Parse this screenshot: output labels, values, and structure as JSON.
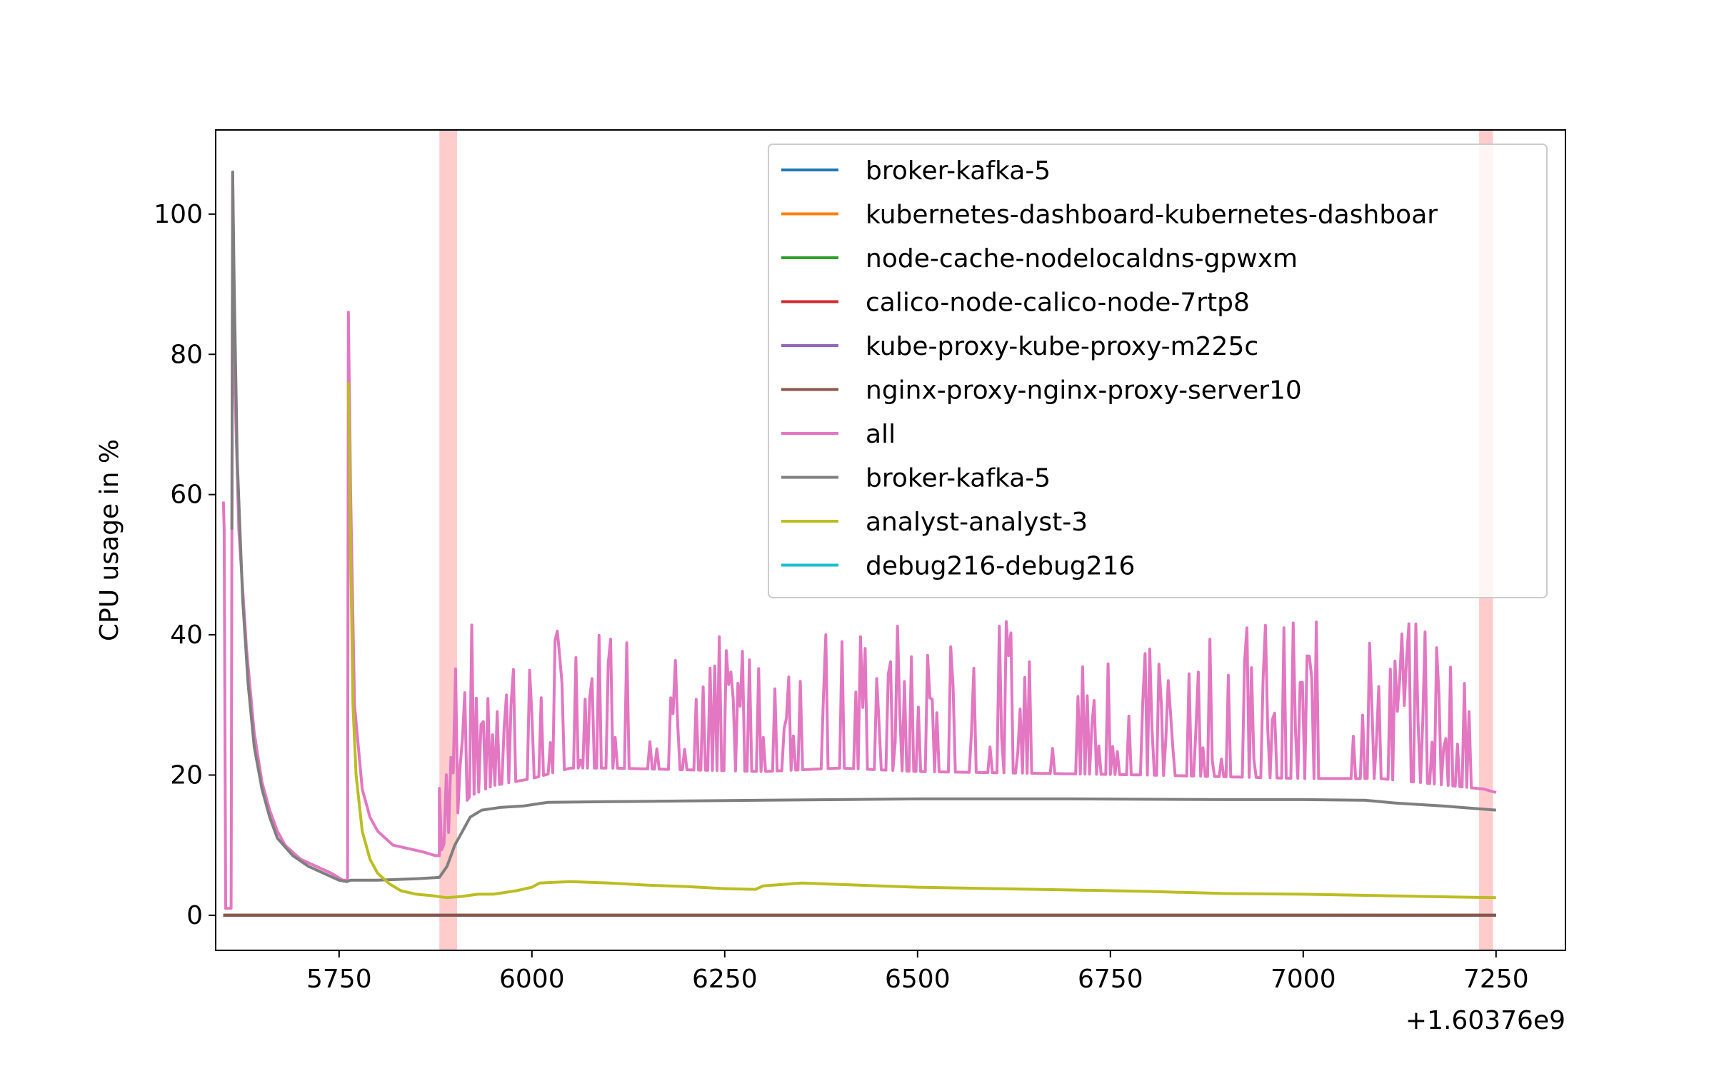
{
  "chart_data": {
    "type": "line",
    "title": "",
    "xlabel": "",
    "ylabel": "CPU usage in %",
    "x_offset_label": "+1.60376e9",
    "xlim": [
      5590,
      7340
    ],
    "ylim": [
      -5,
      112
    ],
    "xticks": [
      5750,
      6000,
      6250,
      6500,
      6750,
      7000,
      7250
    ],
    "yticks": [
      0,
      20,
      40,
      60,
      80,
      100
    ],
    "grid": false,
    "legend_position": "upper right",
    "highlight_spans": [
      {
        "x0": 5880,
        "x1": 5903,
        "color": "#ffcccc"
      },
      {
        "x0": 7228,
        "x1": 7246,
        "color": "#ffcccc"
      }
    ],
    "series": [
      {
        "name": "broker-kafka-5",
        "color": "#1f77b4",
        "zero_line": true
      },
      {
        "name": "kubernetes-dashboard-kubernetes-dashboar",
        "color": "#ff7f0e",
        "zero_line": true
      },
      {
        "name": "node-cache-nodelocaldns-gpwxm",
        "color": "#2ca02c",
        "zero_line": true
      },
      {
        "name": "calico-node-calico-node-7rtp8",
        "color": "#d62728",
        "zero_line": true
      },
      {
        "name": "kube-proxy-kube-proxy-m225c",
        "color": "#9467bd",
        "zero_line": true
      },
      {
        "name": "nginx-proxy-nginx-proxy-server10",
        "color": "#8c564b",
        "zero_line": true
      },
      {
        "name": "all",
        "color": "#e377c2",
        "points": [
          [
            5600,
            59
          ],
          [
            5601,
            55
          ],
          [
            5603,
            1
          ],
          [
            5607,
            1
          ],
          [
            5610,
            1
          ],
          [
            5612,
            106
          ],
          [
            5615,
            75
          ],
          [
            5620,
            55
          ],
          [
            5630,
            38
          ],
          [
            5640,
            26
          ],
          [
            5650,
            19
          ],
          [
            5660,
            15
          ],
          [
            5670,
            12
          ],
          [
            5680,
            10
          ],
          [
            5700,
            8
          ],
          [
            5720,
            7
          ],
          [
            5740,
            6
          ],
          [
            5755,
            5
          ],
          [
            5761,
            5
          ],
          [
            5762,
            86
          ],
          [
            5765,
            60
          ],
          [
            5770,
            30
          ],
          [
            5780,
            18
          ],
          [
            5790,
            14
          ],
          [
            5800,
            12
          ],
          [
            5820,
            10
          ],
          [
            5840,
            9.5
          ],
          [
            5860,
            9
          ],
          [
            5875,
            8.5
          ],
          [
            5880,
            8.5
          ]
        ],
        "spiky": {
          "x0": 5880,
          "x1": 7234,
          "baseline": [
            [
              5880,
              8.5
            ],
            [
              5900,
              14
            ],
            [
              5920,
              17
            ],
            [
              5950,
              18.5
            ],
            [
              6000,
              19.5
            ],
            [
              6050,
              21
            ],
            [
              6100,
              21
            ],
            [
              6300,
              20.5
            ],
            [
              6400,
              21
            ],
            [
              6500,
              20.5
            ],
            [
              6800,
              20
            ],
            [
              7000,
              19.5
            ],
            [
              7100,
              19.5
            ],
            [
              7234,
              18
            ]
          ],
          "peak_min": 22,
          "peak_max": 42,
          "seed": 7
        },
        "tail": [
          [
            7234,
            18
          ],
          [
            7250,
            17.5
          ]
        ]
      },
      {
        "name": "broker-kafka-5",
        "color": "#7f7f7f",
        "points": [
          [
            5611,
            55
          ],
          [
            5612,
            106
          ],
          [
            5614,
            90
          ],
          [
            5618,
            65
          ],
          [
            5625,
            45
          ],
          [
            5632,
            33
          ],
          [
            5640,
            24
          ],
          [
            5650,
            18
          ],
          [
            5660,
            14
          ],
          [
            5670,
            11
          ],
          [
            5690,
            8.5
          ],
          [
            5710,
            7
          ],
          [
            5730,
            6
          ],
          [
            5750,
            5
          ],
          [
            5760,
            4.8
          ],
          [
            5765,
            5
          ],
          [
            5800,
            5
          ],
          [
            5850,
            5.2
          ],
          [
            5880,
            5.4
          ],
          [
            5890,
            7
          ],
          [
            5900,
            10
          ],
          [
            5910,
            12
          ],
          [
            5920,
            14
          ],
          [
            5935,
            15
          ],
          [
            5960,
            15.4
          ],
          [
            5990,
            15.6
          ],
          [
            6020,
            16.1
          ],
          [
            6100,
            16.2
          ],
          [
            6200,
            16.3
          ],
          [
            6300,
            16.4
          ],
          [
            6400,
            16.5
          ],
          [
            6500,
            16.6
          ],
          [
            6700,
            16.6
          ],
          [
            6900,
            16.5
          ],
          [
            7000,
            16.5
          ],
          [
            7080,
            16.4
          ],
          [
            7120,
            16
          ],
          [
            7180,
            15.6
          ],
          [
            7250,
            15
          ]
        ]
      },
      {
        "name": "analyst-analyst-3",
        "color": "#bcbd22",
        "points": [
          [
            5762,
            76
          ],
          [
            5764,
            60
          ],
          [
            5768,
            30
          ],
          [
            5772,
            20
          ],
          [
            5780,
            12
          ],
          [
            5790,
            8
          ],
          [
            5800,
            6
          ],
          [
            5815,
            4.5
          ],
          [
            5830,
            3.5
          ],
          [
            5850,
            3
          ],
          [
            5870,
            2.8
          ],
          [
            5890,
            2.5
          ],
          [
            5910,
            2.7
          ],
          [
            5930,
            3
          ],
          [
            5950,
            3
          ],
          [
            5980,
            3.5
          ],
          [
            6000,
            4
          ],
          [
            6010,
            4.6
          ],
          [
            6050,
            4.8
          ],
          [
            6100,
            4.6
          ],
          [
            6150,
            4.3
          ],
          [
            6200,
            4.1
          ],
          [
            6250,
            3.8
          ],
          [
            6290,
            3.7
          ],
          [
            6300,
            4.2
          ],
          [
            6350,
            4.6
          ],
          [
            6400,
            4.4
          ],
          [
            6450,
            4.2
          ],
          [
            6500,
            4.0
          ],
          [
            6600,
            3.8
          ],
          [
            6700,
            3.6
          ],
          [
            6800,
            3.4
          ],
          [
            6900,
            3.1
          ],
          [
            7000,
            3.0
          ],
          [
            7100,
            2.8
          ],
          [
            7200,
            2.6
          ],
          [
            7250,
            2.5
          ]
        ]
      },
      {
        "name": "debug216-debug216",
        "color": "#17becf",
        "zero_line": true
      }
    ]
  }
}
